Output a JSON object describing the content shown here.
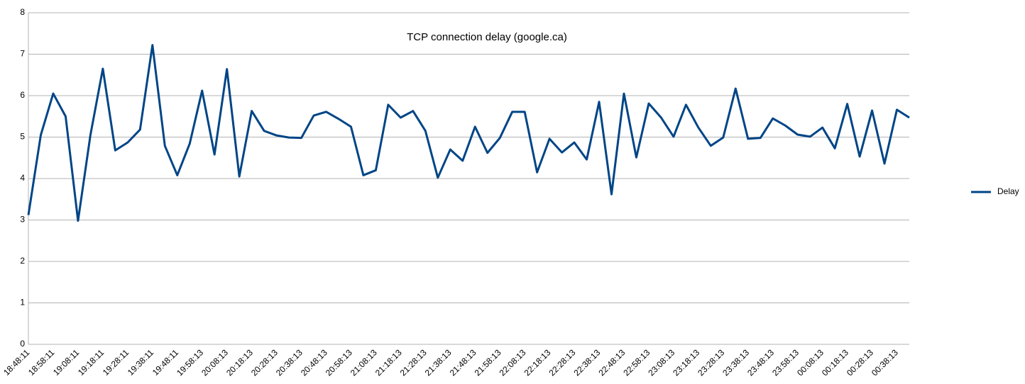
{
  "chart_data": {
    "type": "line",
    "title": "TCP connection delay (google.ca)",
    "categories": [
      "18:48:11",
      null,
      "18:58:11",
      null,
      "19:08:11",
      null,
      "19:18:11",
      null,
      "19:28:11",
      null,
      "19:38:11",
      null,
      "19:48:11",
      null,
      "19:58:13",
      null,
      "20:08:13",
      null,
      "20:18:13",
      null,
      "20:28:13",
      null,
      "20:38:13",
      null,
      "20:48:13",
      null,
      "20:58:13",
      null,
      "21:08:13",
      null,
      "21:18:13",
      null,
      "21:28:13",
      null,
      "21:38:13",
      null,
      "21:48:13",
      null,
      "21:58:13",
      null,
      "22:08:13",
      null,
      "22:18:13",
      null,
      "22:28:13",
      null,
      "22:38:13",
      null,
      "22:48:13",
      null,
      "22:58:13",
      null,
      "23:08:13",
      null,
      "23:18:13",
      null,
      "23:28:13",
      null,
      "23:38:13",
      null,
      "23:48:13",
      null,
      "23:58:13",
      null,
      "00:08:13",
      null,
      "00:18:13",
      null,
      "00:28:13",
      null,
      "00:38:13",
      null
    ],
    "series": [
      {
        "name": "Delay",
        "color": "#004586",
        "values": [
          3.12,
          5.05,
          6.05,
          5.5,
          2.98,
          5.05,
          6.65,
          4.68,
          4.87,
          5.18,
          7.22,
          4.79,
          4.08,
          4.84,
          6.12,
          4.58,
          6.64,
          4.05,
          5.63,
          5.15,
          5.04,
          4.99,
          4.98,
          5.52,
          5.61,
          5.44,
          5.25,
          4.08,
          4.2,
          5.78,
          5.47,
          5.63,
          5.15,
          4.02,
          4.7,
          4.43,
          5.25,
          4.62,
          4.98,
          5.61,
          5.61,
          4.15,
          4.96,
          4.63,
          4.87,
          4.46,
          5.85,
          3.62,
          6.05,
          4.51,
          5.81,
          5.47,
          5.01,
          5.78,
          5.23,
          4.79,
          4.99,
          6.17,
          4.96,
          4.98,
          5.45,
          5.28,
          5.06,
          5.01,
          5.23,
          4.73,
          5.8,
          4.53,
          5.64,
          4.36,
          5.66,
          5.47
        ]
      }
    ],
    "ylim": [
      0,
      8
    ],
    "yticks": [
      0,
      1,
      2,
      3,
      4,
      5,
      6,
      7,
      8
    ],
    "grid": true,
    "legend": "right"
  }
}
